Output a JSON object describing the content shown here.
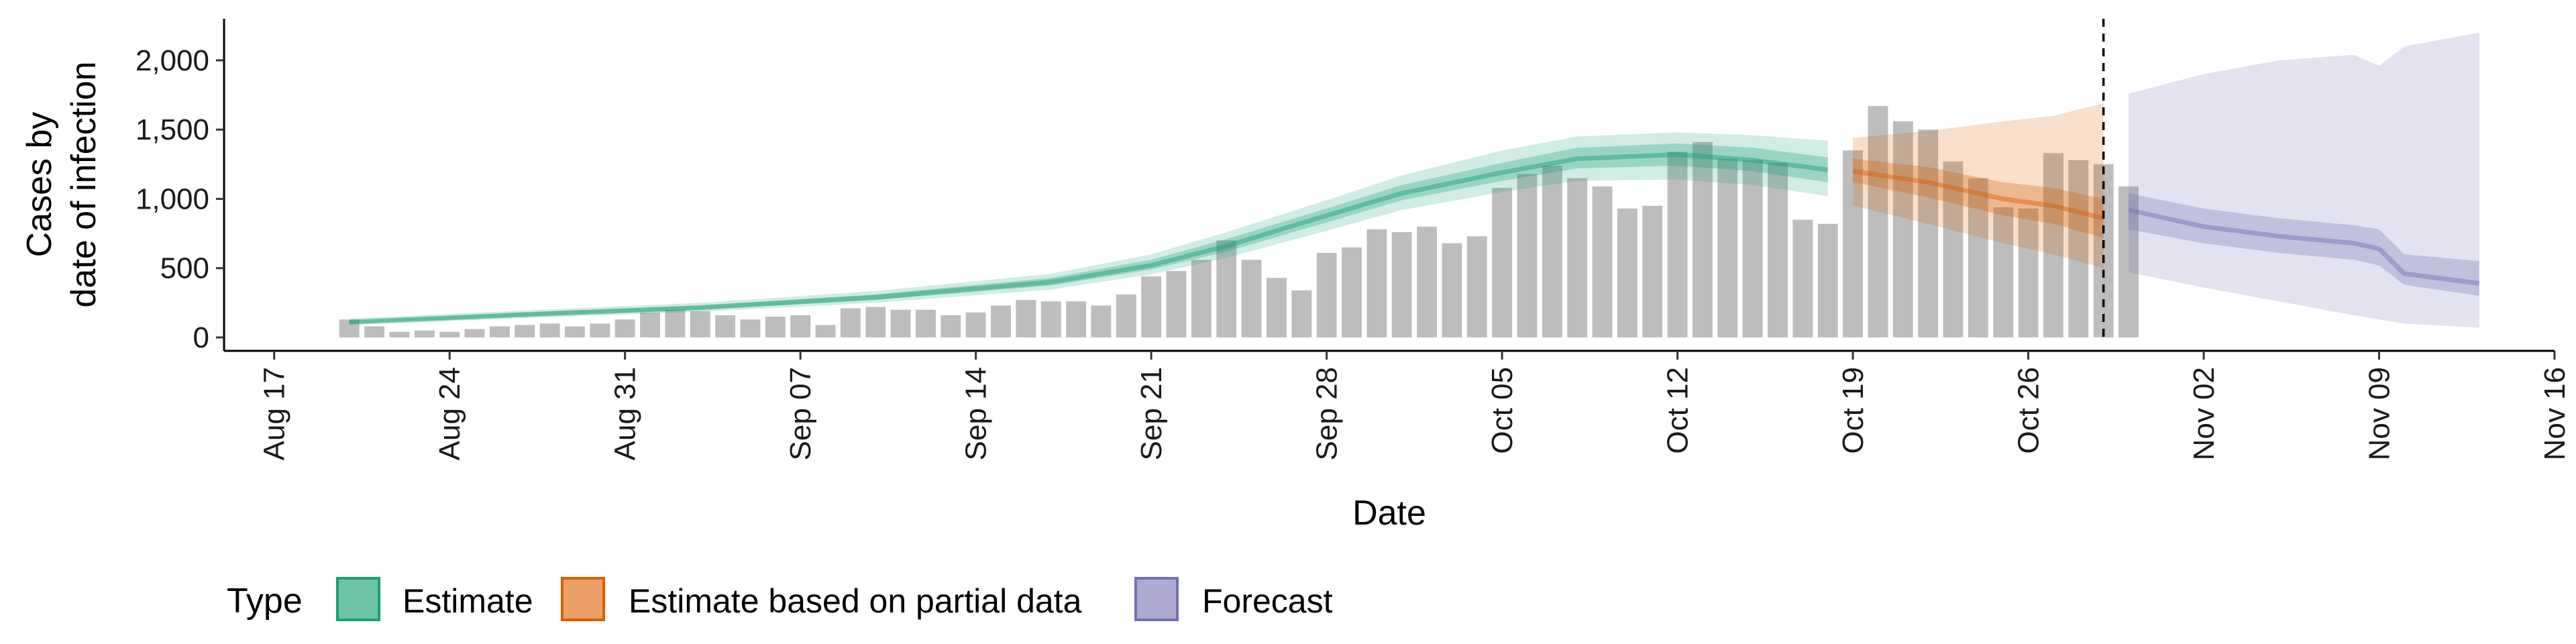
{
  "chart_data": {
    "type": "bar",
    "xlabel": "Date",
    "ylabel_lines": [
      "Cases by",
      "date of infection"
    ],
    "ylim": [
      0,
      2300
    ],
    "yticks": [
      0,
      500,
      1000,
      1500,
      2000
    ],
    "ytick_labels": [
      "0",
      "500",
      "1,000",
      "1,500",
      "2,000"
    ],
    "xlim": [
      "2020-08-15",
      "2020-11-16"
    ],
    "xticks": [
      "2020-08-17",
      "2020-08-24",
      "2020-08-31",
      "2020-09-07",
      "2020-09-14",
      "2020-09-21",
      "2020-09-28",
      "2020-10-05",
      "2020-10-12",
      "2020-10-19",
      "2020-10-26",
      "2020-11-02",
      "2020-11-09",
      "2020-11-16"
    ],
    "xtick_labels": [
      "Aug 17",
      "Aug 24",
      "Aug 31",
      "Sep 07",
      "Sep 14",
      "Sep 21",
      "Sep 28",
      "Oct 05",
      "Oct 12",
      "Oct 19",
      "Oct 26",
      "Nov 02",
      "Nov 09",
      "Nov 16"
    ],
    "vline_date": "2020-10-29",
    "bar_color": "#bdbdbd",
    "bars": {
      "start_date": "2020-08-20",
      "values": [
        130,
        80,
        40,
        50,
        40,
        60,
        80,
        90,
        100,
        80,
        100,
        130,
        180,
        200,
        190,
        160,
        130,
        150,
        160,
        90,
        210,
        220,
        200,
        200,
        160,
        180,
        230,
        270,
        260,
        260,
        230,
        310,
        440,
        480,
        560,
        700,
        560,
        430,
        340,
        610,
        650,
        780,
        760,
        800,
        680,
        730,
        1080,
        1180,
        1240,
        1150,
        1090,
        930,
        950,
        1340,
        1410,
        1290,
        1280,
        1260,
        850,
        820,
        1350,
        1670,
        1560,
        1500,
        1270,
        1150,
        940,
        930,
        1330,
        1280,
        1250,
        1090
      ]
    },
    "series": [
      {
        "name": "Estimate",
        "color": "#1b9e77",
        "x": [
          "2020-08-20",
          "2020-08-27",
          "2020-09-03",
          "2020-09-10",
          "2020-09-17",
          "2020-09-21",
          "2020-09-24",
          "2020-09-28",
          "2020-10-01",
          "2020-10-05",
          "2020-10-08",
          "2020-10-12",
          "2020-10-15",
          "2020-10-18"
        ],
        "median": [
          110,
          165,
          215,
          290,
          400,
          520,
          660,
          880,
          1040,
          1190,
          1290,
          1320,
          1280,
          1210
        ],
        "inner": [
          [
            100,
            120
          ],
          [
            150,
            180
          ],
          [
            200,
            230
          ],
          [
            270,
            310
          ],
          [
            375,
            430
          ],
          [
            490,
            560
          ],
          [
            620,
            710
          ],
          [
            830,
            930
          ],
          [
            990,
            1100
          ],
          [
            1130,
            1260
          ],
          [
            1220,
            1370
          ],
          [
            1240,
            1400
          ],
          [
            1200,
            1370
          ],
          [
            1120,
            1300
          ]
        ],
        "outer": [
          [
            90,
            135
          ],
          [
            140,
            195
          ],
          [
            185,
            250
          ],
          [
            250,
            335
          ],
          [
            345,
            460
          ],
          [
            455,
            600
          ],
          [
            575,
            760
          ],
          [
            770,
            990
          ],
          [
            920,
            1170
          ],
          [
            1050,
            1350
          ],
          [
            1130,
            1450
          ],
          [
            1140,
            1480
          ],
          [
            1100,
            1460
          ],
          [
            1020,
            1420
          ]
        ]
      },
      {
        "name": "Estimate based on partial data",
        "color": "#d95f02",
        "x": [
          "2020-10-19",
          "2020-10-22",
          "2020-10-25",
          "2020-10-27",
          "2020-10-29"
        ],
        "median": [
          1200,
          1120,
          1000,
          950,
          860
        ],
        "inner": [
          [
            1120,
            1290
          ],
          [
            1010,
            1230
          ],
          [
            880,
            1120
          ],
          [
            820,
            1080
          ],
          [
            720,
            1000
          ]
        ],
        "outer": [
          [
            950,
            1440
          ],
          [
            820,
            1490
          ],
          [
            680,
            1560
          ],
          [
            600,
            1600
          ],
          [
            500,
            1690
          ]
        ]
      },
      {
        "name": "Forecast",
        "color": "#7570b3",
        "x": [
          "2020-10-30",
          "2020-11-02",
          "2020-11-05",
          "2020-11-08",
          "2020-11-09",
          "2020-11-10",
          "2020-11-13"
        ],
        "median": [
          920,
          800,
          730,
          680,
          640,
          460,
          390
        ],
        "inner": [
          [
            780,
            1040
          ],
          [
            680,
            930
          ],
          [
            610,
            860
          ],
          [
            560,
            810
          ],
          [
            520,
            780
          ],
          [
            380,
            600
          ],
          [
            300,
            550
          ]
        ],
        "outer": [
          [
            470,
            1760
          ],
          [
            360,
            1900
          ],
          [
            260,
            2000
          ],
          [
            160,
            2040
          ],
          [
            130,
            1960
          ],
          [
            100,
            2100
          ],
          [
            70,
            2200
          ]
        ]
      }
    ],
    "legend": {
      "position": "bottom",
      "title": "Type",
      "items": [
        "Estimate",
        "Estimate based on partial data",
        "Forecast"
      ]
    },
    "grid": false
  }
}
